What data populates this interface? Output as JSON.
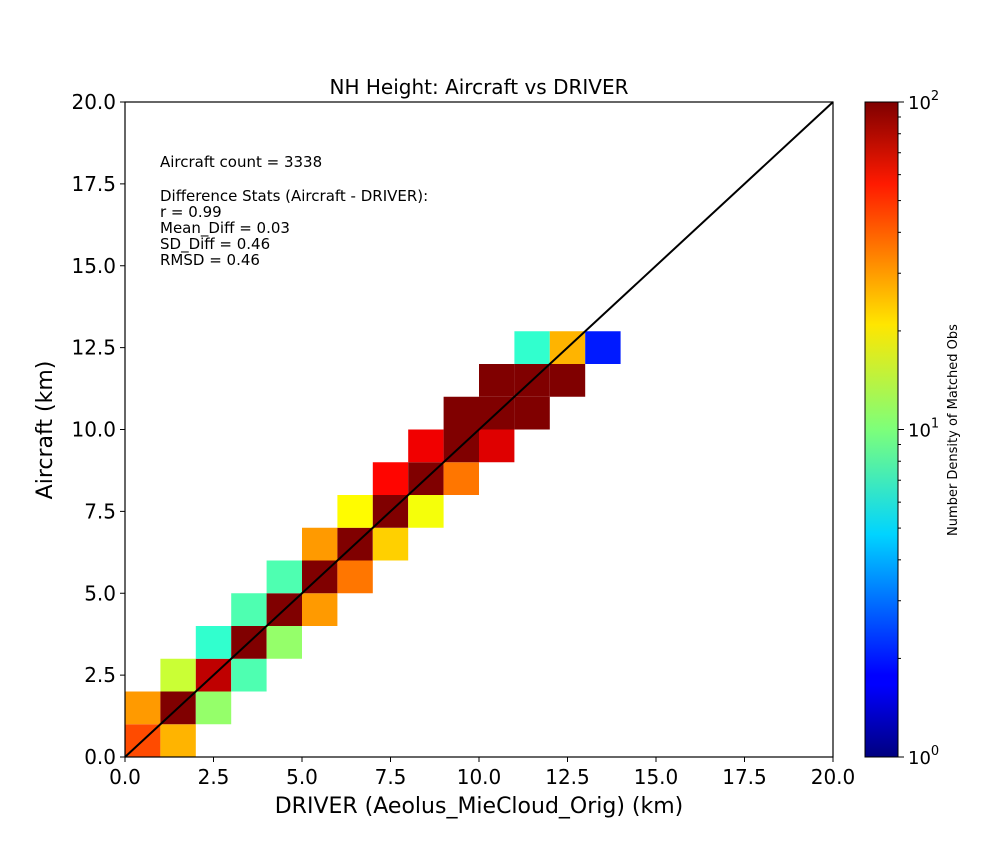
{
  "chart_data": {
    "type": "heatmap",
    "title": "NH Height: Aircraft vs DRIVER",
    "xlabel": "DRIVER (Aeolus_MieCloud_Orig) (km)",
    "ylabel": "Aircraft (km)",
    "xlim": [
      0,
      20
    ],
    "ylim": [
      0,
      20
    ],
    "x_ticks": [
      "0.0",
      "2.5",
      "5.0",
      "7.5",
      "10.0",
      "12.5",
      "15.0",
      "17.5",
      "20.0"
    ],
    "y_ticks": [
      "0.0",
      "2.5",
      "5.0",
      "7.5",
      "10.0",
      "12.5",
      "15.0",
      "17.5",
      "20.0"
    ],
    "bin_size_km": 1,
    "one_to_one_line": true,
    "grid": false,
    "colorbar": {
      "label": "Number Density of Matched Obs",
      "scale": "log",
      "range": [
        1,
        100
      ],
      "colormap": "jet",
      "ticks": [
        {
          "value": 1,
          "base": "10",
          "exp": "0"
        },
        {
          "value": 10,
          "base": "10",
          "exp": "1"
        },
        {
          "value": 100,
          "base": "10",
          "exp": "2"
        }
      ]
    },
    "annotations": [
      "Aircraft count = 3338",
      "Difference Stats (Aircraft - DRIVER):",
      "r = 0.99",
      "Mean_Diff = 0.03",
      "SD_Diff = 0.46",
      "RMSD = 0.46"
    ],
    "cells": [
      {
        "x": 0,
        "y": 0,
        "count": 40
      },
      {
        "x": 1,
        "y": 0,
        "count": 25
      },
      {
        "x": 0,
        "y": 1,
        "count": 28
      },
      {
        "x": 1,
        "y": 1,
        "count": 100
      },
      {
        "x": 2,
        "y": 1,
        "count": 11
      },
      {
        "x": 1,
        "y": 2,
        "count": 14
      },
      {
        "x": 2,
        "y": 2,
        "count": 75
      },
      {
        "x": 3,
        "y": 2,
        "count": 8
      },
      {
        "x": 2,
        "y": 3,
        "count": 7
      },
      {
        "x": 3,
        "y": 3,
        "count": 100
      },
      {
        "x": 4,
        "y": 3,
        "count": 11
      },
      {
        "x": 3,
        "y": 4,
        "count": 8
      },
      {
        "x": 4,
        "y": 4,
        "count": 100
      },
      {
        "x": 5,
        "y": 4,
        "count": 28
      },
      {
        "x": 4,
        "y": 5,
        "count": 8
      },
      {
        "x": 5,
        "y": 5,
        "count": 100
      },
      {
        "x": 6,
        "y": 5,
        "count": 33
      },
      {
        "x": 5,
        "y": 6,
        "count": 28
      },
      {
        "x": 6,
        "y": 6,
        "count": 100
      },
      {
        "x": 7,
        "y": 6,
        "count": 22
      },
      {
        "x": 6,
        "y": 7,
        "count": 18
      },
      {
        "x": 7,
        "y": 7,
        "count": 100
      },
      {
        "x": 8,
        "y": 7,
        "count": 17
      },
      {
        "x": 7,
        "y": 8,
        "count": 55
      },
      {
        "x": 8,
        "y": 8,
        "count": 100
      },
      {
        "x": 9,
        "y": 8,
        "count": 33
      },
      {
        "x": 8,
        "y": 9,
        "count": 60
      },
      {
        "x": 9,
        "y": 9,
        "count": 100
      },
      {
        "x": 10,
        "y": 9,
        "count": 65
      },
      {
        "x": 9,
        "y": 10,
        "count": 100
      },
      {
        "x": 10,
        "y": 10,
        "count": 100
      },
      {
        "x": 11,
        "y": 10,
        "count": 100
      },
      {
        "x": 10,
        "y": 11,
        "count": 100
      },
      {
        "x": 11,
        "y": 11,
        "count": 100
      },
      {
        "x": 12,
        "y": 11,
        "count": 100
      },
      {
        "x": 11,
        "y": 12,
        "count": 7
      },
      {
        "x": 12,
        "y": 12,
        "count": 25
      },
      {
        "x": 13,
        "y": 12,
        "count": 2
      }
    ]
  }
}
